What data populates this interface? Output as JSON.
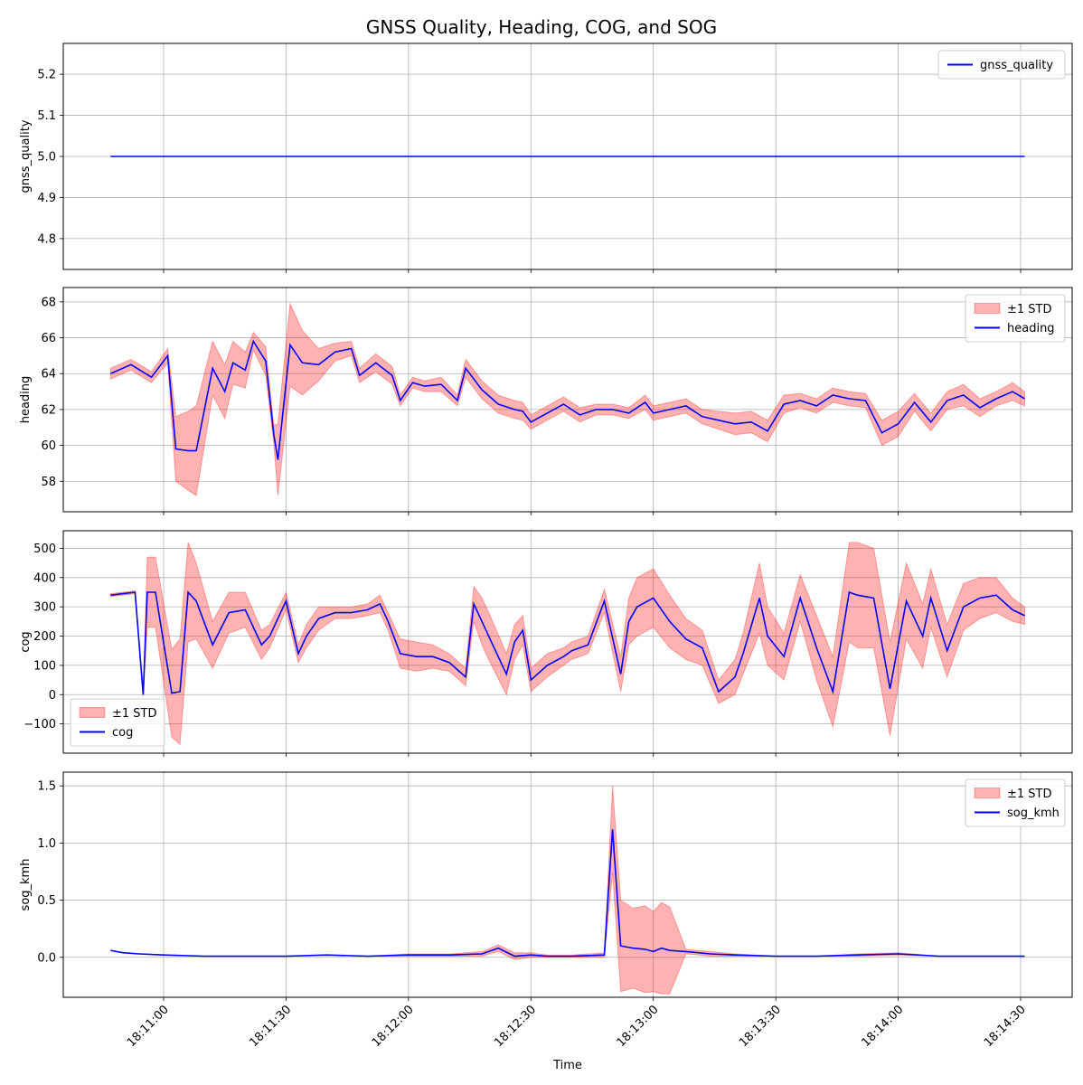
{
  "figure": {
    "title": "GNSS Quality, Heading, COG, and SOG",
    "xlabel": "Time",
    "x_ticks": [
      "18:11:00",
      "18:11:30",
      "18:12:00",
      "18:12:30",
      "18:13:00",
      "18:13:30",
      "18:14:00",
      "18:14:30"
    ]
  },
  "chart_data": [
    {
      "type": "line",
      "ylabel": "gnss_quality",
      "ylim": [
        4.725,
        5.275
      ],
      "yticks": [
        "4.8",
        "4.9",
        "5.0",
        "5.1",
        "5.2"
      ],
      "grid": true,
      "legend_position": "upper right",
      "legend": [
        "gnss_quality"
      ],
      "x_range_seconds": [
        "18:10:47",
        "18:14:31"
      ],
      "series": [
        {
          "name": "gnss_quality",
          "color": "#0000ff",
          "x": [
            "18:10:47",
            "18:14:31"
          ],
          "values": [
            5.0,
            5.0
          ]
        }
      ]
    },
    {
      "type": "line",
      "ylabel": "heading",
      "ylim": [
        56.3,
        68.8
      ],
      "yticks": [
        "58",
        "60",
        "62",
        "64",
        "66",
        "68"
      ],
      "grid": true,
      "legend_position": "upper right",
      "legend": [
        "±1 STD",
        "heading"
      ],
      "band_color": "#ff0000",
      "line_color": "#0000ff",
      "x": [
        "18:10:47",
        "18:10:52",
        "18:10:57",
        "18:11:01",
        "18:11:03",
        "18:11:06",
        "18:11:08",
        "18:11:12",
        "18:11:15",
        "18:11:17",
        "18:11:20",
        "18:11:22",
        "18:11:25",
        "18:11:27",
        "18:11:28",
        "18:11:31",
        "18:11:34",
        "18:11:38",
        "18:11:42",
        "18:11:46",
        "18:11:48",
        "18:11:52",
        "18:11:56",
        "18:11:58",
        "18:12:01",
        "18:12:04",
        "18:12:08",
        "18:12:12",
        "18:12:14",
        "18:12:18",
        "18:12:22",
        "18:12:26",
        "18:12:28",
        "18:12:30",
        "18:12:34",
        "18:12:38",
        "18:12:42",
        "18:12:46",
        "18:12:50",
        "18:12:54",
        "18:12:58",
        "18:13:00",
        "18:13:04",
        "18:13:08",
        "18:13:12",
        "18:13:16",
        "18:13:20",
        "18:13:24",
        "18:13:28",
        "18:13:32",
        "18:13:36",
        "18:13:40",
        "18:13:44",
        "18:13:48",
        "18:13:52",
        "18:13:56",
        "18:14:00",
        "18:14:04",
        "18:14:08",
        "18:14:12",
        "18:14:16",
        "18:14:20",
        "18:14:24",
        "18:14:28",
        "18:14:31"
      ],
      "values": [
        64.0,
        64.5,
        63.8,
        65.0,
        59.8,
        59.7,
        59.7,
        64.3,
        63.0,
        64.6,
        64.2,
        65.8,
        64.7,
        60.6,
        59.2,
        65.6,
        64.6,
        64.5,
        65.2,
        65.4,
        63.9,
        64.6,
        63.9,
        62.5,
        63.5,
        63.3,
        63.4,
        62.5,
        64.3,
        63.1,
        62.3,
        62.0,
        61.9,
        61.3,
        61.8,
        62.3,
        61.7,
        62.0,
        62.0,
        61.8,
        62.4,
        61.8,
        62.0,
        62.2,
        61.6,
        61.4,
        61.2,
        61.3,
        60.8,
        62.3,
        62.5,
        62.2,
        62.8,
        62.6,
        62.5,
        60.7,
        61.2,
        62.4,
        61.3,
        62.5,
        62.8,
        62.1,
        62.6,
        63.0,
        62.6
      ],
      "std": [
        0.3,
        0.3,
        0.3,
        0.4,
        1.8,
        2.2,
        2.5,
        1.5,
        1.5,
        1.2,
        1.0,
        0.5,
        0.8,
        0.5,
        2.0,
        2.3,
        1.8,
        0.9,
        0.5,
        0.4,
        0.4,
        0.5,
        0.5,
        0.3,
        0.3,
        0.3,
        0.4,
        0.3,
        0.5,
        0.5,
        0.5,
        0.5,
        0.5,
        0.4,
        0.4,
        0.4,
        0.4,
        0.3,
        0.3,
        0.3,
        0.4,
        0.4,
        0.4,
        0.4,
        0.4,
        0.5,
        0.6,
        0.6,
        0.6,
        0.5,
        0.4,
        0.4,
        0.4,
        0.4,
        0.4,
        0.7,
        0.7,
        0.5,
        0.5,
        0.5,
        0.6,
        0.5,
        0.4,
        0.5,
        0.4
      ]
    },
    {
      "type": "line",
      "ylabel": "cog",
      "ylim": [
        -200,
        560
      ],
      "yticks": [
        "−100",
        "0",
        "100",
        "200",
        "300",
        "400",
        "500"
      ],
      "grid": true,
      "legend_position": "lower left",
      "legend": [
        "±1 STD",
        "cog"
      ],
      "band_color": "#ff0000",
      "line_color": "#0000ff",
      "x": [
        "18:10:47",
        "18:10:50",
        "18:10:53",
        "18:10:55",
        "18:10:56",
        "18:10:58",
        "18:11:02",
        "18:11:04",
        "18:11:06",
        "18:11:08",
        "18:11:12",
        "18:11:16",
        "18:11:20",
        "18:11:24",
        "18:11:26",
        "18:11:30",
        "18:11:33",
        "18:11:35",
        "18:11:38",
        "18:11:42",
        "18:11:46",
        "18:11:50",
        "18:11:53",
        "18:11:55",
        "18:11:58",
        "18:12:02",
        "18:12:06",
        "18:12:10",
        "18:12:14",
        "18:12:16",
        "18:12:18",
        "18:12:20",
        "18:12:24",
        "18:12:26",
        "18:12:28",
        "18:12:30",
        "18:12:34",
        "18:12:38",
        "18:12:40",
        "18:12:44",
        "18:12:48",
        "18:12:52",
        "18:12:54",
        "18:12:56",
        "18:13:00",
        "18:13:04",
        "18:13:08",
        "18:13:12",
        "18:13:16",
        "18:13:20",
        "18:13:22",
        "18:13:26",
        "18:13:28",
        "18:13:32",
        "18:13:36",
        "18:13:40",
        "18:13:44",
        "18:13:48",
        "18:13:50",
        "18:13:54",
        "18:13:58",
        "18:14:02",
        "18:14:06",
        "18:14:08",
        "18:14:12",
        "18:14:16",
        "18:14:20",
        "18:14:24",
        "18:14:28",
        "18:14:31"
      ],
      "values": [
        340,
        345,
        350,
        0,
        350,
        350,
        5,
        10,
        350,
        320,
        170,
        280,
        290,
        170,
        200,
        320,
        140,
        200,
        260,
        280,
        280,
        290,
        310,
        250,
        140,
        130,
        130,
        110,
        60,
        310,
        250,
        190,
        70,
        180,
        220,
        50,
        100,
        130,
        150,
        170,
        320,
        70,
        250,
        300,
        330,
        250,
        190,
        160,
        10,
        60,
        140,
        330,
        200,
        130,
        330,
        160,
        10,
        350,
        340,
        330,
        20,
        320,
        200,
        330,
        150,
        300,
        330,
        340,
        290,
        270
      ],
      "std": [
        5,
        5,
        5,
        5,
        120,
        120,
        150,
        180,
        170,
        130,
        80,
        70,
        60,
        50,
        40,
        30,
        30,
        40,
        40,
        20,
        20,
        20,
        30,
        30,
        50,
        50,
        40,
        30,
        30,
        60,
        80,
        80,
        70,
        60,
        50,
        40,
        40,
        30,
        30,
        30,
        40,
        60,
        80,
        100,
        100,
        90,
        70,
        60,
        40,
        60,
        70,
        120,
        100,
        80,
        80,
        110,
        120,
        170,
        180,
        170,
        160,
        130,
        110,
        100,
        90,
        80,
        70,
        60,
        40,
        30
      ]
    },
    {
      "type": "line",
      "ylabel": "sog_kmh",
      "ylim": [
        -0.35,
        1.62
      ],
      "yticks": [
        "0.0",
        "0.5",
        "1.0",
        "1.5"
      ],
      "grid": true,
      "legend_position": "upper right",
      "legend": [
        "±1 STD",
        "sog_kmh"
      ],
      "band_color": "#ff0000",
      "line_color": "#0000ff",
      "x": [
        "18:10:47",
        "18:10:50",
        "18:10:54",
        "18:11:00",
        "18:11:10",
        "18:11:20",
        "18:11:30",
        "18:11:40",
        "18:11:50",
        "18:12:00",
        "18:12:10",
        "18:12:18",
        "18:12:22",
        "18:12:26",
        "18:12:30",
        "18:12:34",
        "18:12:40",
        "18:12:48",
        "18:12:50",
        "18:12:52",
        "18:12:55",
        "18:12:58",
        "18:13:00",
        "18:13:02",
        "18:13:04",
        "18:13:08",
        "18:13:14",
        "18:13:20",
        "18:13:30",
        "18:13:40",
        "18:13:50",
        "18:14:00",
        "18:14:10",
        "18:14:20",
        "18:14:31"
      ],
      "values": [
        0.06,
        0.04,
        0.03,
        0.02,
        0.01,
        0.01,
        0.01,
        0.02,
        0.01,
        0.02,
        0.02,
        0.03,
        0.08,
        0.01,
        0.02,
        0.01,
        0.01,
        0.02,
        1.12,
        0.1,
        0.08,
        0.07,
        0.05,
        0.08,
        0.06,
        0.05,
        0.03,
        0.02,
        0.01,
        0.01,
        0.02,
        0.03,
        0.01,
        0.01,
        0.01
      ],
      "std": [
        0.0,
        0.0,
        0.0,
        0.0,
        0.0,
        0.0,
        0.0,
        0.0,
        0.0,
        0.01,
        0.01,
        0.02,
        0.03,
        0.03,
        0.02,
        0.01,
        0.01,
        0.02,
        0.38,
        0.4,
        0.35,
        0.38,
        0.35,
        0.4,
        0.38,
        0.02,
        0.02,
        0.01,
        0.0,
        0.0,
        0.01,
        0.01,
        0.0,
        0.0,
        0.0
      ]
    }
  ]
}
